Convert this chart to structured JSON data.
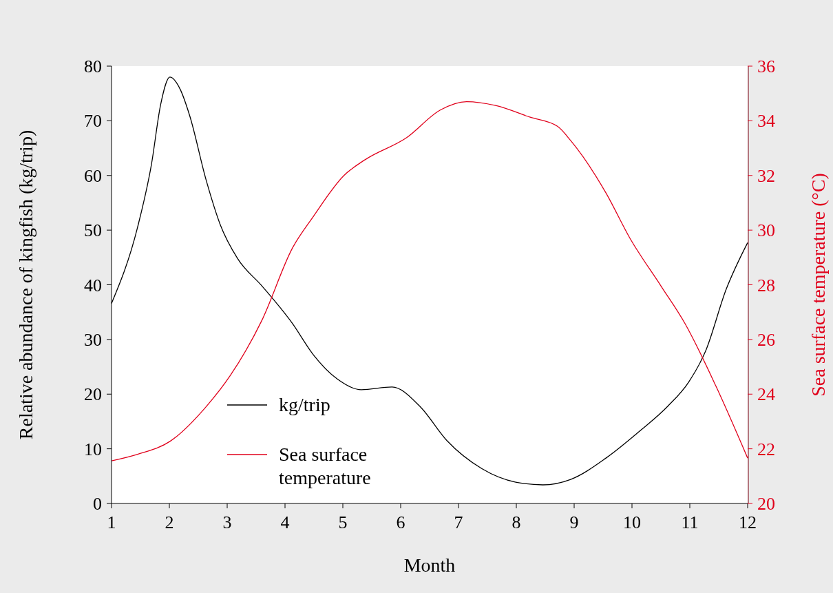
{
  "chart_data": {
    "type": "line",
    "xlabel": "Month",
    "ylabel": "Relative abundance of kingfish (kg/trip)",
    "y2label": "Sea surface temperature (°C)",
    "xlim": [
      1,
      12
    ],
    "xticks": [
      1,
      2,
      3,
      4,
      5,
      6,
      7,
      8,
      9,
      10,
      11,
      12
    ],
    "ylim": [
      0,
      80
    ],
    "yticks": [
      0,
      10,
      20,
      30,
      40,
      50,
      60,
      70,
      80
    ],
    "y2lim": [
      20,
      36
    ],
    "y2ticks": [
      20,
      22,
      24,
      26,
      28,
      30,
      32,
      34,
      36
    ],
    "legend": "bottom left",
    "grid": false,
    "series": [
      {
        "name": "kg/trip",
        "color": "#000000",
        "x": [
          1,
          1.45,
          1.69,
          1.85,
          2.01,
          2.19,
          2.35,
          2.64,
          2.88,
          3.18,
          3.6,
          4.13,
          4.49,
          4.9,
          5.32,
          5.85,
          6.33,
          6.8,
          7.4,
          7.99,
          8.46,
          8.94,
          9.55,
          10.14,
          10.62,
          10.98,
          11.27,
          11.63,
          12
        ],
        "values": [
          36.6,
          50.5,
          62,
          73,
          78,
          75.7,
          71,
          59,
          51,
          44.8,
          39.8,
          32.9,
          27.2,
          22.8,
          20.8,
          21.3,
          17.8,
          11.5,
          6.4,
          3.9,
          3.4,
          4.4,
          8.3,
          13.3,
          17.8,
          22.2,
          27.8,
          39.2,
          47.7
        ]
      },
      {
        "name": "Sea surface temperature",
        "color": "#e0001b",
        "axis": "y2",
        "x": [
          1,
          1.45,
          2.01,
          2.64,
          3.06,
          3.6,
          4.13,
          4.49,
          5.02,
          5.38,
          6.1,
          6.69,
          7.14,
          7.64,
          8.24,
          8.71,
          8.95,
          9.55,
          9.96,
          10.5,
          10.92,
          11.45,
          12
        ],
        "values": [
          21.56,
          21.8,
          22.27,
          23.55,
          24.7,
          26.7,
          29.35,
          30.5,
          32.0,
          32.57,
          33.38,
          34.4,
          34.7,
          34.56,
          34.13,
          33.8,
          33.25,
          31.36,
          29.72,
          27.96,
          26.57,
          24.3,
          21.66
        ]
      }
    ]
  }
}
